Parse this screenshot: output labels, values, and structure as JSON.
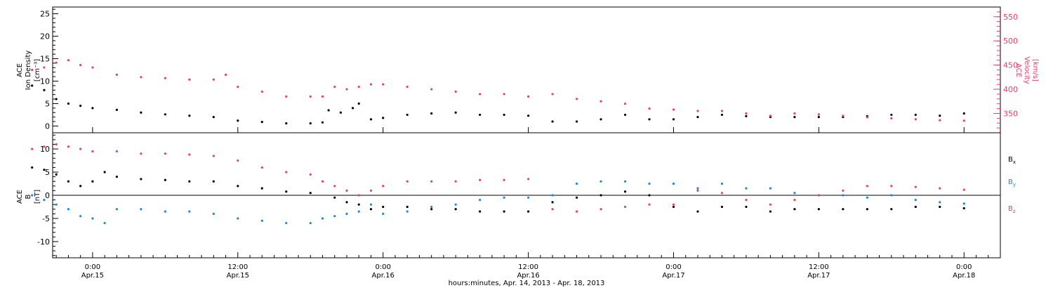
{
  "chart_data": [
    {
      "type": "scatter",
      "panel": "upper",
      "ylabel_left": [
        "ACE",
        "Ion Density",
        "[cm⁻³]"
      ],
      "ylabel_right": [
        "ACE",
        "Velocity",
        "[km/s]"
      ],
      "y_left_ticks": [
        "0",
        "5",
        "10",
        "15",
        "20",
        "25"
      ],
      "y_right_ticks": [
        "350",
        "400",
        "450",
        "500",
        "550"
      ],
      "ylim_left": [
        -1.5,
        26.5
      ],
      "ylim_right": [
        310,
        570
      ],
      "series": [
        {
          "name": "",
          "axis": "left",
          "color": "#000000",
          "points": [
            [
              -5,
              9
            ],
            [
              -4,
              8
            ],
            [
              -3,
              6
            ],
            [
              -2,
              5
            ],
            [
              -1,
              4.5
            ],
            [
              0,
              4
            ],
            [
              2,
              3.6
            ],
            [
              4,
              3
            ],
            [
              6,
              2.6
            ],
            [
              8,
              2.3
            ],
            [
              10,
              2
            ],
            [
              12,
              1.2
            ],
            [
              14,
              0.9
            ],
            [
              16,
              0.6
            ],
            [
              18,
              0.6
            ],
            [
              19,
              0.8
            ],
            [
              19.5,
              3.5
            ],
            [
              20.5,
              3
            ],
            [
              21.5,
              4
            ],
            [
              22,
              5
            ],
            [
              23,
              1.5
            ],
            [
              24,
              1.8
            ],
            [
              26,
              2.5
            ],
            [
              28,
              2.8
            ],
            [
              30,
              3
            ],
            [
              32,
              2.5
            ],
            [
              34,
              2.5
            ],
            [
              36,
              2.3
            ],
            [
              38,
              1
            ],
            [
              40,
              1
            ],
            [
              42,
              1.5
            ],
            [
              44,
              2.5
            ],
            [
              46,
              1.5
            ],
            [
              48,
              1.5
            ],
            [
              50,
              2
            ],
            [
              52,
              2.5
            ],
            [
              54,
              2.2
            ],
            [
              56,
              2
            ],
            [
              58,
              2
            ],
            [
              60,
              2
            ],
            [
              62,
              2
            ],
            [
              64,
              2.2
            ],
            [
              66,
              2.5
            ],
            [
              68,
              2.5
            ],
            [
              70,
              2.3
            ],
            [
              72,
              2.8
            ]
          ]
        },
        {
          "name": "",
          "axis": "right",
          "color": "#e8406a",
          "points": [
            [
              -5,
              440
            ],
            [
              -4,
              445
            ],
            [
              -3,
              455
            ],
            [
              -2,
              460
            ],
            [
              -1,
              450
            ],
            [
              0,
              445
            ],
            [
              2,
              430
            ],
            [
              4,
              425
            ],
            [
              6,
              423
            ],
            [
              8,
              420
            ],
            [
              10,
              420
            ],
            [
              11,
              430
            ],
            [
              12,
              405
            ],
            [
              14,
              395
            ],
            [
              16,
              385
            ],
            [
              18,
              385
            ],
            [
              19,
              385
            ],
            [
              20,
              405
            ],
            [
              21,
              400
            ],
            [
              22,
              405
            ],
            [
              23,
              410
            ],
            [
              24,
              410
            ],
            [
              26,
              405
            ],
            [
              28,
              400
            ],
            [
              30,
              395
            ],
            [
              32,
              390
            ],
            [
              34,
              390
            ],
            [
              36,
              385
            ],
            [
              38,
              390
            ],
            [
              40,
              380
            ],
            [
              42,
              375
            ],
            [
              44,
              370
            ],
            [
              46,
              360
            ],
            [
              48,
              358
            ],
            [
              50,
              355
            ],
            [
              52,
              355
            ],
            [
              54,
              350
            ],
            [
              56,
              345
            ],
            [
              58,
              350
            ],
            [
              60,
              348
            ],
            [
              62,
              345
            ],
            [
              64,
              342
            ],
            [
              66,
              340
            ],
            [
              68,
              338
            ],
            [
              70,
              336
            ],
            [
              72,
              335
            ]
          ]
        }
      ]
    },
    {
      "type": "scatter",
      "panel": "lower",
      "ylabel_left": [
        "ACE",
        "B",
        "[nT]"
      ],
      "y_left_ticks": [
        "-10",
        "-5",
        "0",
        "5",
        "10"
      ],
      "ylim_left": [
        -13.5,
        13.5
      ],
      "series": [
        {
          "name": "Bx",
          "color": "#000000",
          "points": [
            [
              -5,
              6
            ],
            [
              -4,
              5.5
            ],
            [
              -3,
              4.5
            ],
            [
              -2,
              3
            ],
            [
              -1,
              2
            ],
            [
              0,
              3
            ],
            [
              1,
              5
            ],
            [
              2,
              4
            ],
            [
              4,
              3.5
            ],
            [
              6,
              3.3
            ],
            [
              8,
              3
            ],
            [
              10,
              3
            ],
            [
              12,
              2
            ],
            [
              14,
              1.5
            ],
            [
              16,
              0.8
            ],
            [
              18,
              0.5
            ],
            [
              20,
              -0.5
            ],
            [
              21,
              -1.5
            ],
            [
              22,
              -2
            ],
            [
              23,
              -3
            ],
            [
              24,
              -2.5
            ],
            [
              26,
              -2.5
            ],
            [
              28,
              -3
            ],
            [
              30,
              -3
            ],
            [
              32,
              -3.5
            ],
            [
              34,
              -3.5
            ],
            [
              36,
              -3.5
            ],
            [
              38,
              -1.5
            ],
            [
              40,
              -0.5
            ],
            [
              42,
              0
            ],
            [
              44,
              0.8
            ],
            [
              46,
              0
            ],
            [
              48,
              -2.5
            ],
            [
              50,
              -3.5
            ],
            [
              52,
              -2.5
            ],
            [
              54,
              -2.5
            ],
            [
              56,
              -3.5
            ],
            [
              58,
              -3
            ],
            [
              60,
              -3
            ],
            [
              62,
              -3
            ],
            [
              64,
              -3
            ],
            [
              66,
              -3
            ],
            [
              68,
              -2.5
            ],
            [
              70,
              -2.5
            ],
            [
              72,
              -2.8
            ]
          ]
        },
        {
          "name": "By",
          "color": "#1a88e0",
          "points": [
            [
              -5,
              0
            ],
            [
              -4,
              -1
            ],
            [
              -3,
              -2
            ],
            [
              -2,
              -3
            ],
            [
              -1,
              -4.5
            ],
            [
              0,
              -5
            ],
            [
              1,
              -6
            ],
            [
              2,
              -3
            ],
            [
              4,
              -3
            ],
            [
              6,
              -3.5
            ],
            [
              8,
              -3.5
            ],
            [
              10,
              -4
            ],
            [
              12,
              -5
            ],
            [
              14,
              -5.5
            ],
            [
              16,
              -6
            ],
            [
              18,
              -6
            ],
            [
              19,
              -5
            ],
            [
              20,
              -4.5
            ],
            [
              21,
              -4
            ],
            [
              22,
              -3.5
            ],
            [
              23,
              -2
            ],
            [
              24,
              -4
            ],
            [
              26,
              -3.5
            ],
            [
              28,
              -2.5
            ],
            [
              30,
              -2
            ],
            [
              32,
              -1
            ],
            [
              34,
              -0.5
            ],
            [
              36,
              -0.5
            ],
            [
              38,
              0
            ],
            [
              40,
              2.5
            ],
            [
              42,
              3
            ],
            [
              44,
              3
            ],
            [
              46,
              2.5
            ],
            [
              48,
              2.5
            ],
            [
              50,
              1.5
            ],
            [
              52,
              2.5
            ],
            [
              54,
              1.5
            ],
            [
              56,
              1.5
            ],
            [
              58,
              0.5
            ],
            [
              60,
              0
            ],
            [
              62,
              0
            ],
            [
              64,
              -0.5
            ],
            [
              66,
              0
            ],
            [
              68,
              -1
            ],
            [
              70,
              -1.5
            ],
            [
              72,
              -1.8
            ]
          ]
        },
        {
          "name": "Bz",
          "color": "#e8406a",
          "points": [
            [
              -5,
              10
            ],
            [
              -4,
              10.5
            ],
            [
              -3,
              11
            ],
            [
              -2,
              10.5
            ],
            [
              -1,
              10
            ],
            [
              0,
              9.5
            ],
            [
              2,
              9.5
            ],
            [
              4,
              9
            ],
            [
              6,
              9
            ],
            [
              8,
              8.8
            ],
            [
              10,
              8.5
            ],
            [
              12,
              7.5
            ],
            [
              14,
              6
            ],
            [
              16,
              5
            ],
            [
              18,
              4.5
            ],
            [
              19,
              3
            ],
            [
              20,
              2
            ],
            [
              21,
              1
            ],
            [
              22,
              0
            ],
            [
              23,
              1
            ],
            [
              24,
              2
            ],
            [
              26,
              3
            ],
            [
              28,
              3
            ],
            [
              30,
              3
            ],
            [
              32,
              3.3
            ],
            [
              34,
              3.3
            ],
            [
              36,
              3.5
            ],
            [
              38,
              -3
            ],
            [
              40,
              -3.5
            ],
            [
              42,
              -3
            ],
            [
              44,
              -2.5
            ],
            [
              46,
              -2
            ],
            [
              48,
              -2
            ],
            [
              50,
              1
            ],
            [
              52,
              0.5
            ],
            [
              54,
              -1
            ],
            [
              56,
              -2
            ],
            [
              58,
              -1
            ],
            [
              60,
              0
            ],
            [
              62,
              1
            ],
            [
              64,
              2
            ],
            [
              66,
              2
            ],
            [
              68,
              1.8
            ],
            [
              70,
              1.5
            ],
            [
              72,
              1.2
            ]
          ]
        }
      ]
    },
    {
      "type": "axis",
      "x_ticks": [
        {
          "hours": 0,
          "time": "0:00",
          "date": "Apr.15"
        },
        {
          "hours": 12,
          "time": "12:00",
          "date": "Apr.15"
        },
        {
          "hours": 24,
          "time": "0:00",
          "date": "Apr.16"
        },
        {
          "hours": 36,
          "time": "12:00",
          "date": "Apr.16"
        },
        {
          "hours": 48,
          "time": "0:00",
          "date": "Apr.17"
        },
        {
          "hours": 60,
          "time": "12:00",
          "date": "Apr.17"
        },
        {
          "hours": 72,
          "time": "0:00",
          "date": "Apr.18"
        }
      ],
      "xlim": [
        -3.3,
        75.0
      ],
      "xlabel": "hours:minutes, Apr. 14, 2013 - Apr. 18, 2013"
    }
  ],
  "legend": [
    {
      "label": "Bx",
      "main": "B",
      "sub": "x",
      "color": "#000000"
    },
    {
      "label": "By",
      "main": "B",
      "sub": "y",
      "color": "#1a88e0"
    },
    {
      "label": "Bz",
      "main": "B",
      "sub": "z",
      "color": "#e8406a"
    }
  ]
}
